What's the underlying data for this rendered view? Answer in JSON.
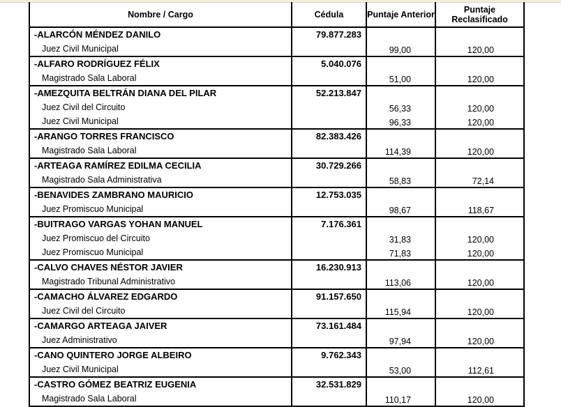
{
  "headers": {
    "nombre_cargo": "Nombre / Cargo",
    "cedula": "Cédula",
    "puntaje_anterior": "Puntaje Anterior",
    "puntaje_reclasificado": "Puntaje Reclasificado"
  },
  "rows": [
    {
      "nombre": "-ALARCÓN MÉNDEZ DANILO",
      "cedula": "79.877.283",
      "cargos": [
        {
          "cargo": "Juez Civil Municipal",
          "anterior": "99,00",
          "reclasificado": "120,00"
        }
      ]
    },
    {
      "nombre": "-ALFARO RODRÍGUEZ FÉLIX",
      "cedula": "5.040.076",
      "cargos": [
        {
          "cargo": "Magistrado Sala Laboral",
          "anterior": "51,00",
          "reclasificado": "120,00"
        }
      ]
    },
    {
      "nombre": "-AMEZQUITA BELTRÁN DIANA DEL PILAR",
      "cedula": "52.213.847",
      "cargos": [
        {
          "cargo": "Juez Civil del Circuito",
          "anterior": "56,33",
          "reclasificado": "120,00"
        },
        {
          "cargo": "Juez Civil Municipal",
          "anterior": "96,33",
          "reclasificado": "120,00"
        }
      ]
    },
    {
      "nombre": "-ARANGO TORRES FRANCISCO",
      "cedula": "82.383.426",
      "cargos": [
        {
          "cargo": "Magistrado Sala Laboral",
          "anterior": "114,39",
          "reclasificado": "120,00"
        }
      ]
    },
    {
      "nombre": "-ARTEAGA RAMÍREZ EDILMA CECILIA",
      "cedula": "30.729.266",
      "cargos": [
        {
          "cargo": "Magistrado Sala Administrativa",
          "anterior": "58,83",
          "reclasificado": "72,14"
        }
      ]
    },
    {
      "nombre": "-BENAVIDES ZAMBRANO MAURICIO",
      "cedula": "12.753.035",
      "cargos": [
        {
          "cargo": "Juez Promiscuo Municipal",
          "anterior": "98,67",
          "reclasificado": "118,67"
        }
      ]
    },
    {
      "nombre": "-BUITRAGO VARGAS YOHAN MANUEL",
      "cedula": "7.176.361",
      "cargos": [
        {
          "cargo": "Juez Promiscuo del Circuito",
          "anterior": "31,83",
          "reclasificado": "120,00"
        },
        {
          "cargo": "Juez Promiscuo Municipal",
          "anterior": "71,83",
          "reclasificado": "120,00"
        }
      ]
    },
    {
      "nombre": "-CALVO CHAVES NÉSTOR JAVIER",
      "cedula": "16.230.913",
      "cargos": [
        {
          "cargo": "Magistrado Tribunal Administrativo",
          "anterior": "113,06",
          "reclasificado": "120,00"
        }
      ]
    },
    {
      "nombre": "-CAMACHO ÁLVAREZ EDGARDO",
      "cedula": "91.157.650",
      "cargos": [
        {
          "cargo": "Juez Civil del Circuito",
          "anterior": "115,94",
          "reclasificado": "120,00"
        }
      ]
    },
    {
      "nombre": "-CAMARGO ARTEAGA JAIVER",
      "cedula": "73.161.484",
      "cargos": [
        {
          "cargo": "Juez Administrativo",
          "anterior": "97,94",
          "reclasificado": "120,00"
        }
      ]
    },
    {
      "nombre": "-CANO QUINTERO JORGE ALBEIRO",
      "cedula": "9.762.343",
      "cargos": [
        {
          "cargo": "Juez Civil Municipal",
          "anterior": "53,00",
          "reclasificado": "112,61"
        }
      ]
    },
    {
      "nombre": "-CASTRO GÓMEZ BEATRIZ EUGENIA",
      "cedula": "32.531.829",
      "cargos": [
        {
          "cargo": "Magistrado Sala Laboral",
          "anterior": "110,17",
          "reclasificado": "120,00"
        }
      ]
    }
  ]
}
